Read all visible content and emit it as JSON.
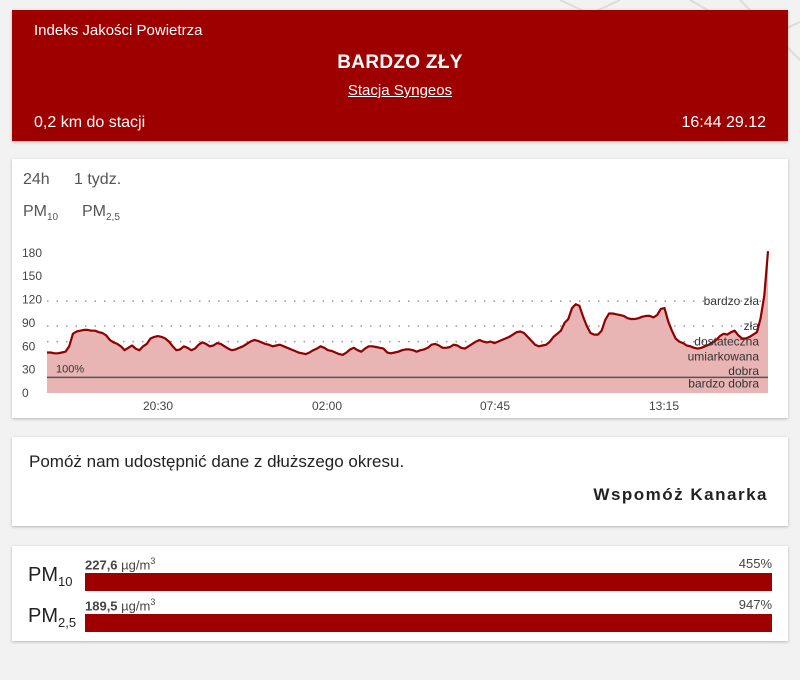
{
  "header": {
    "index_label": "Indeks Jakości Powietrza",
    "status": "BARDZO ZŁY",
    "station": "Stacja Syngeos",
    "distance": "0,2 km do stacji",
    "timestamp": "16:44 29.12",
    "color": "#9e0000"
  },
  "tabs": {
    "range": [
      {
        "label": "24h",
        "active": true
      },
      {
        "label": "1 tydz.",
        "active": false
      }
    ],
    "pollutant": [
      {
        "label": "PM",
        "sub": "10",
        "active": false
      },
      {
        "label": "PM",
        "sub": "2,5",
        "active": true
      }
    ]
  },
  "chart_data": {
    "type": "area",
    "ylim": [
      0,
      190
    ],
    "yticks": [
      0,
      30,
      60,
      90,
      120,
      150,
      180
    ],
    "xticks": [
      "20:30",
      "02:00",
      "07:45",
      "13:15"
    ],
    "threshold_label": "100%",
    "threshold_value": 20,
    "levels": [
      {
        "label": "bardzo zła",
        "value": 118
      },
      {
        "label": "zła",
        "value": 86
      },
      {
        "label": "dostateczna",
        "value": 66
      },
      {
        "label": "umiarkowana",
        "value": 47
      },
      {
        "label": "dobra",
        "value": 28
      },
      {
        "label": "bardzo dobra",
        "value": 12
      }
    ],
    "values": [
      52,
      52,
      51,
      51,
      52,
      53,
      60,
      76,
      79,
      80,
      81,
      81,
      80,
      80,
      78,
      77,
      74,
      68,
      65,
      63,
      60,
      55,
      58,
      61,
      57,
      55,
      60,
      63,
      70,
      72,
      73,
      72,
      70,
      66,
      60,
      55,
      56,
      60,
      58,
      55,
      57,
      62,
      65,
      63,
      60,
      61,
      64,
      63,
      60,
      57,
      55,
      56,
      58,
      60,
      63,
      66,
      68,
      67,
      65,
      63,
      62,
      60,
      61,
      62,
      60,
      58,
      56,
      54,
      52,
      51,
      50,
      52,
      55,
      57,
      60,
      58,
      55,
      54,
      52,
      50,
      49,
      52,
      56,
      58,
      55,
      53,
      57,
      60,
      60,
      59,
      58,
      57,
      52,
      51,
      52,
      53,
      55,
      56,
      56,
      55,
      53,
      55,
      56,
      58,
      62,
      63,
      61,
      58,
      58,
      59,
      62,
      61,
      58,
      57,
      60,
      63,
      66,
      68,
      66,
      65,
      66,
      64,
      66,
      68,
      70,
      72,
      75,
      78,
      79,
      77,
      72,
      67,
      62,
      60,
      61,
      62,
      66,
      72,
      76,
      80,
      90,
      95,
      109,
      114,
      112,
      98,
      86,
      77,
      75,
      75,
      80,
      94,
      102,
      102,
      101,
      100,
      99,
      96,
      95,
      95,
      96,
      98,
      99,
      99,
      97,
      100,
      108,
      109,
      92,
      80,
      70,
      66,
      64,
      61,
      60,
      58,
      57,
      58,
      60,
      62,
      65,
      68,
      73,
      76,
      75,
      78,
      80,
      74,
      70,
      70,
      72,
      75,
      78,
      96,
      125,
      182
    ]
  },
  "support": {
    "message": "Pomóż nam udostępnić dane z dłuższego okresu.",
    "button": "Wspomóż Kanarka"
  },
  "concentrations": [
    {
      "name": "PM",
      "sub": "10",
      "value": "227,6",
      "unit": "µg/m",
      "unit_sup": "3",
      "percent": "455%",
      "fill": 1.0
    },
    {
      "name": "PM",
      "sub": "2,5",
      "value": "189,5",
      "unit": "µg/m",
      "unit_sup": "3",
      "percent": "947%",
      "fill": 1.0
    }
  ]
}
